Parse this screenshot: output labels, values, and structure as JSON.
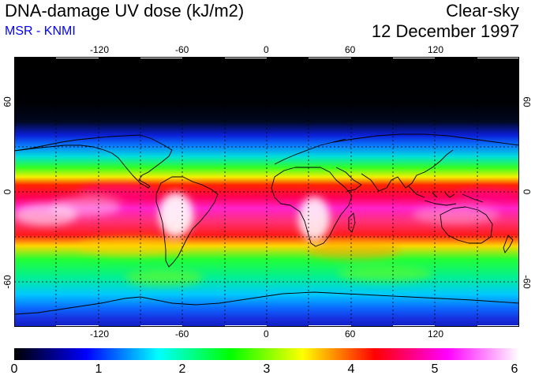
{
  "header": {
    "title": "DNA-damage UV dose (kJ/m2)",
    "subtitle": "MSR - KNMI",
    "subtitle_color": "#0000ff",
    "sky_condition": "Clear-sky",
    "date": "12 December 1997"
  },
  "map": {
    "projection": "equirectangular",
    "lon_range": [
      -180,
      180
    ],
    "lat_range": [
      -90,
      90
    ],
    "lon_tick_labels": [
      "-120",
      "-60",
      "0",
      "60",
      "120"
    ],
    "lat_tick_labels_left": [
      "60",
      "0",
      "-60"
    ],
    "lat_tick_labels_right": [
      "60",
      "0",
      "-60"
    ]
  },
  "colorbar": {
    "min": 0,
    "max": 6,
    "labels": [
      "0",
      "1",
      "2",
      "3",
      "4",
      "5",
      "6"
    ],
    "colors": [
      "#000000",
      "#0000ff",
      "#00ffff",
      "#00ff00",
      "#ffff00",
      "#ff0000",
      "#ff00ff",
      "#ffffff"
    ]
  }
}
